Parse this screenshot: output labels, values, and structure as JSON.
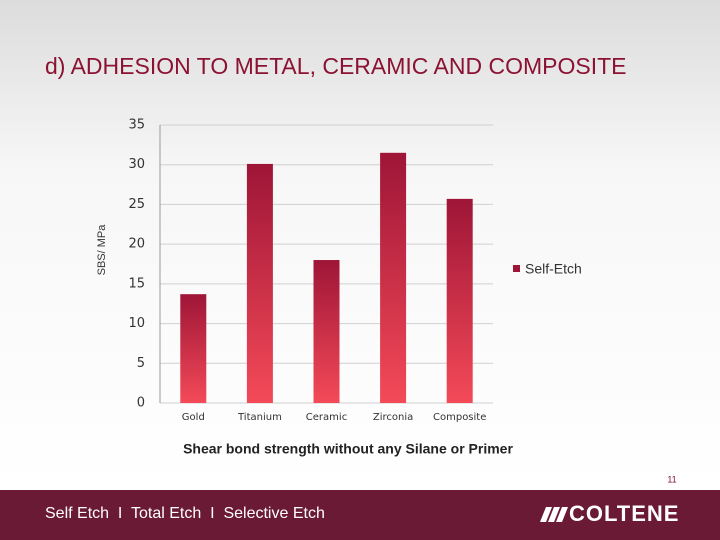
{
  "slide": {
    "title": "d) ADHESION TO METAL, CERAMIC AND COMPOSITE",
    "page_number": "11",
    "footer": "Self Etch  I  Total Etch  I  Selective Etch",
    "logo": "COLTENE"
  },
  "chart_data": {
    "type": "bar",
    "y_label": "SBS/ MPa",
    "caption": "Shear bond strength without any Silane or Primer",
    "categories": [
      "Gold",
      "Titanium",
      "Ceramic",
      "Zirconia",
      "Composite"
    ],
    "series": [
      {
        "name": "Self-Etch",
        "color": "#9e1537",
        "values": [
          13.7,
          30.1,
          18.0,
          31.5,
          25.7
        ]
      }
    ],
    "ylim": [
      0,
      35
    ],
    "yticks": [
      0,
      5,
      10,
      15,
      20,
      25,
      30,
      35
    ],
    "grid": true,
    "legend": "right"
  }
}
